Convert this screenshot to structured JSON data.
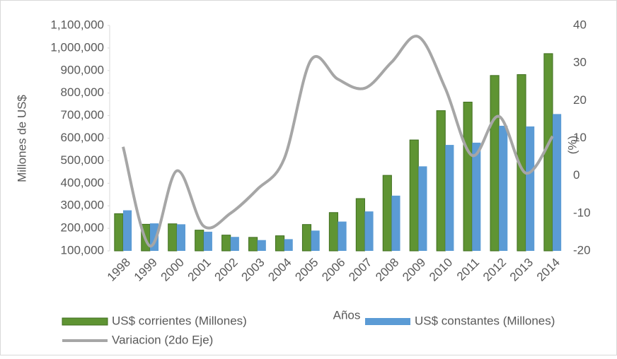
{
  "chart_data": {
    "type": "bar",
    "x_label": "Años",
    "y_label": "Millones de US$",
    "y2_label": "(%)",
    "categories": [
      "1998",
      "1999",
      "2000",
      "2001",
      "2002",
      "2003",
      "2004",
      "2005",
      "2006",
      "2007",
      "2008",
      "2009",
      "2010",
      "2011",
      "2012",
      "2013",
      "2014"
    ],
    "series": [
      {
        "name": "US$ corrientes (Millones)",
        "color": "#5f9433",
        "type": "bar",
        "values": [
          265000,
          218000,
          220000,
          192000,
          170000,
          160000,
          167000,
          217000,
          270000,
          332000,
          435000,
          592000,
          722000,
          760000,
          878000,
          882000,
          975000
        ]
      },
      {
        "name": "US$ constantes (Millones)",
        "color": "#5b9bd5",
        "type": "bar",
        "values": [
          280000,
          222000,
          218000,
          185000,
          162000,
          148000,
          152000,
          190000,
          230000,
          275000,
          345000,
          475000,
          570000,
          580000,
          655000,
          652000,
          707000
        ]
      },
      {
        "name": "Variacion (2do Eje)",
        "color": "#a6a6a6",
        "type": "line",
        "axis": "y2",
        "values": [
          7.7,
          -18.7,
          1.3,
          -13.4,
          -10,
          -3.6,
          4.5,
          30.8,
          25.7,
          23.3,
          30.2,
          37,
          23.3,
          5.4,
          15.8,
          0.7,
          10.5
        ]
      }
    ],
    "ylim": [
      100000,
      1100000
    ],
    "yticks": [
      {
        "value": 100000,
        "label": "100,000"
      },
      {
        "value": 200000,
        "label": "200,000"
      },
      {
        "value": 300000,
        "label": "300,000"
      },
      {
        "value": 400000,
        "label": "400,000"
      },
      {
        "value": 500000,
        "label": "500,000"
      },
      {
        "value": 600000,
        "label": "600,000"
      },
      {
        "value": 700000,
        "label": "700,000"
      },
      {
        "value": 800000,
        "label": "800,000"
      },
      {
        "value": 900000,
        "label": "900,000"
      },
      {
        "value": 1000000,
        "label": "1,000,000"
      },
      {
        "value": 1100000,
        "label": "1,100,000"
      }
    ],
    "y2lim": [
      -20,
      40
    ],
    "y2ticks": [
      -20,
      -10,
      0,
      10,
      20,
      30,
      40
    ]
  }
}
